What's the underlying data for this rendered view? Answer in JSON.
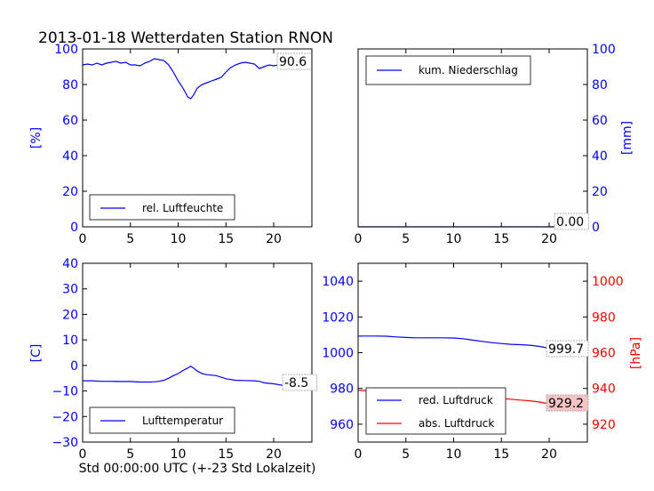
{
  "figure": {
    "title": "2013-01-18 Wetterdaten Station RNON",
    "xlabel": "Std 00:00:00 UTC (+-23 Std Lokalzeit)"
  },
  "colors": {
    "blue": "#0000ff",
    "red": "#ff0000",
    "black": "#000000",
    "pressure_box_fill": "#f4c4c4"
  },
  "chart_data": [
    {
      "id": "humidity",
      "type": "line",
      "ylabel": "[%]",
      "ylabel_color": "blue",
      "ylim": [
        0,
        100
      ],
      "xlim": [
        0,
        24
      ],
      "xticks": [
        "0",
        "5",
        "10",
        "15",
        "20"
      ],
      "yticks": [
        "0",
        "20",
        "40",
        "60",
        "80",
        "100"
      ],
      "legend_loc": "lower-left",
      "last_value": "90.6",
      "series": [
        {
          "name": "rel. Luftfeuchte",
          "color": "blue",
          "x": [
            0,
            0.5,
            1,
            1.5,
            2,
            2.5,
            3,
            3.5,
            4,
            4.5,
            5,
            5.5,
            6,
            6.5,
            7,
            7.5,
            8,
            8.5,
            9,
            9.5,
            10,
            10.5,
            11,
            11.3,
            11.6,
            12,
            12.5,
            13,
            13.5,
            14,
            14.5,
            15,
            15.5,
            16,
            16.5,
            17,
            17.5,
            18,
            18.5,
            19,
            19.5,
            20,
            20.5,
            21,
            21.5,
            22,
            22.5,
            23,
            23.5,
            24
          ],
          "y": [
            91,
            91.5,
            91,
            92,
            91,
            92,
            92.5,
            93,
            92,
            92.5,
            91,
            91,
            90.5,
            92,
            93,
            94.5,
            94,
            93.5,
            91,
            87,
            82,
            78,
            73,
            72,
            74,
            78,
            80,
            81,
            82,
            83,
            84,
            87,
            89.5,
            91,
            92,
            92.5,
            92,
            91.5,
            89,
            90,
            91,
            90.5,
            91,
            92,
            92.5,
            92,
            91.5,
            90.5,
            91,
            90.6
          ]
        }
      ]
    },
    {
      "id": "precipitation",
      "type": "line",
      "ylabel": "[mm]",
      "ylabel_color": "blue",
      "ylim": [
        0,
        100
      ],
      "xlim": [
        0,
        24
      ],
      "xticks": [
        "0",
        "5",
        "10",
        "15",
        "20"
      ],
      "yticks": [
        "0",
        "20",
        "40",
        "60",
        "80",
        "100"
      ],
      "legend_loc": "upper-left",
      "last_value": "0.00",
      "series": [
        {
          "name": "kum. Niederschlag",
          "color": "blue",
          "x": [
            0,
            24
          ],
          "y": [
            0,
            0
          ]
        }
      ]
    },
    {
      "id": "temperature",
      "type": "line",
      "ylabel": "[C]",
      "ylabel_color": "blue",
      "ylim": [
        -30,
        40
      ],
      "xlim": [
        0,
        24
      ],
      "xticks": [
        "0",
        "5",
        "10",
        "15",
        "20"
      ],
      "yticks": [
        "−30",
        "−20",
        "−10",
        "0",
        "10",
        "20",
        "30",
        "40"
      ],
      "legend_loc": "lower-left",
      "last_value": "-8.5",
      "series": [
        {
          "name": "Lufttemperatur",
          "color": "blue",
          "x": [
            0,
            1,
            2,
            3,
            4,
            5,
            6,
            7,
            7.5,
            8,
            8.5,
            9,
            9.5,
            10,
            10.5,
            11,
            11.3,
            11.6,
            12,
            12.5,
            13,
            14,
            15,
            16,
            17,
            18,
            18.5,
            19,
            20,
            21,
            22,
            23,
            24
          ],
          "y": [
            -6,
            -6,
            -6.2,
            -6.2,
            -6.3,
            -6.3,
            -6.5,
            -6.5,
            -6.4,
            -6.2,
            -5.8,
            -5,
            -4,
            -3.2,
            -2,
            -1,
            -0.3,
            -1,
            -2.2,
            -3.2,
            -3.6,
            -4,
            -5.2,
            -5.8,
            -5.9,
            -6,
            -6.2,
            -6.8,
            -7.2,
            -7.8,
            -8,
            -8.3,
            -8.5
          ]
        }
      ]
    },
    {
      "id": "pressure",
      "type": "line",
      "ylabel_left": "",
      "ylabel_right": "[hPa]",
      "ylim_left": [
        950,
        1050
      ],
      "ylim_right": [
        910,
        1010
      ],
      "xlim": [
        0,
        24
      ],
      "xticks": [
        "0",
        "5",
        "10",
        "15",
        "20"
      ],
      "yticks_left": [
        "960",
        "980",
        "1000",
        "1020",
        "1040"
      ],
      "yticks_right": [
        "920",
        "940",
        "960",
        "980",
        "1000"
      ],
      "legend_loc": "lower-left",
      "last_value_left": "999.7",
      "last_value_right": "929.2",
      "series": [
        {
          "name": "red. Luftdruck",
          "color": "blue",
          "axis": "left",
          "x": [
            0,
            1,
            2,
            3,
            4,
            5,
            6,
            7,
            8,
            9,
            10,
            11,
            12,
            13,
            14,
            15,
            16,
            17,
            18,
            19,
            20,
            21,
            22,
            23,
            24
          ],
          "y": [
            1009.3,
            1009.3,
            1009.3,
            1009.2,
            1008.8,
            1008.5,
            1008.3,
            1008.3,
            1008.3,
            1008.3,
            1008.2,
            1007.8,
            1007,
            1006.3,
            1005.6,
            1005.1,
            1004.7,
            1004.5,
            1004.2,
            1003.5,
            1002.5,
            1001.5,
            1000.8,
            1000.2,
            999.7
          ]
        },
        {
          "name": "abs. Luftdruck",
          "color": "red",
          "axis": "right",
          "x": [
            0,
            1,
            2,
            3,
            4,
            5,
            6,
            7,
            8,
            9,
            10,
            11,
            11.5,
            12,
            13,
            14,
            15,
            16,
            17,
            18,
            19,
            20,
            21,
            22,
            23,
            24
          ],
          "y": [
            939,
            938.8,
            938.8,
            938.5,
            938,
            937.8,
            937.5,
            937.6,
            937.6,
            937.8,
            938.2,
            938.3,
            937.5,
            936.5,
            935.5,
            934.8,
            934.4,
            934,
            933.5,
            933.1,
            932.4,
            931.4,
            930.6,
            930,
            929.6,
            929.2
          ]
        }
      ]
    }
  ]
}
